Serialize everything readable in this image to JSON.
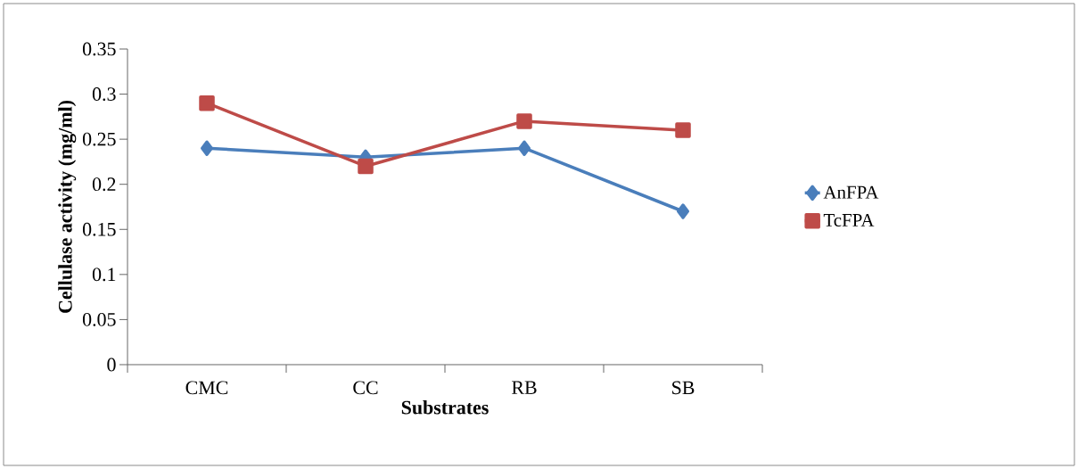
{
  "chart_data": {
    "type": "line",
    "xlabel": "Substrates",
    "ylabel": "Cellulase activity (mg/ml)",
    "categories": [
      "CMC",
      "CC",
      "RB",
      "SB"
    ],
    "series": [
      {
        "name": "AnFPA",
        "color": "#4a7ebb",
        "marker": "diamond",
        "values": [
          0.24,
          0.23,
          0.24,
          0.17
        ]
      },
      {
        "name": "TcFPA",
        "color": "#be4b48",
        "marker": "square",
        "values": [
          0.29,
          0.22,
          0.27,
          0.26
        ]
      }
    ],
    "ylim": [
      0,
      0.35
    ],
    "yticks": [
      0,
      0.05,
      0.1,
      0.15,
      0.2,
      0.25,
      0.3,
      0.35
    ],
    "grid": false,
    "legend": "right"
  }
}
